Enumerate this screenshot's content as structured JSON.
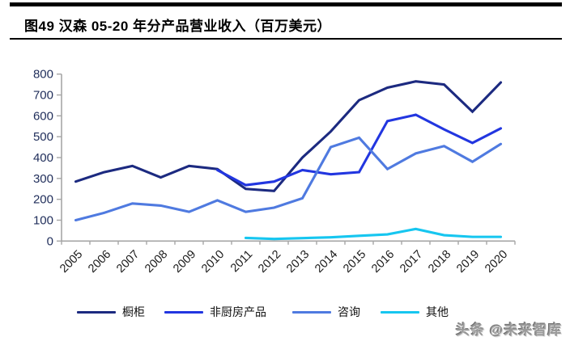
{
  "title": "图49 汉森 05-20 年分产品营业收入（百万美元）",
  "watermark": "头条 @未来智库",
  "chart_data": {
    "type": "line",
    "title": "图49 汉森 05-20 年分产品营业收入（百万美元）",
    "unit": "百万美元",
    "x": [
      "2005",
      "2006",
      "2007",
      "2008",
      "2009",
      "2010",
      "2011",
      "2012",
      "2013",
      "2014",
      "2015",
      "2016",
      "2017",
      "2018",
      "2019",
      "2020"
    ],
    "series": [
      {
        "name": "橱柜",
        "color": "#1c2a80",
        "values": [
          285,
          330,
          360,
          305,
          360,
          345,
          250,
          240,
          400,
          525,
          675,
          735,
          765,
          750,
          620,
          760
        ]
      },
      {
        "name": "非厨房产品",
        "color": "#2236e0",
        "values": [
          null,
          null,
          null,
          null,
          null,
          340,
          268,
          285,
          340,
          320,
          330,
          575,
          605,
          535,
          470,
          540
        ]
      },
      {
        "name": "咨询",
        "color": "#4f7ae0",
        "values": [
          100,
          135,
          180,
          170,
          140,
          195,
          140,
          160,
          205,
          450,
          495,
          345,
          420,
          455,
          380,
          465
        ]
      },
      {
        "name": "其他",
        "color": "#16c6f0",
        "values": [
          null,
          null,
          null,
          null,
          null,
          null,
          15,
          10,
          14,
          18,
          25,
          32,
          58,
          28,
          20,
          20
        ]
      }
    ],
    "ylim": [
      0,
      800
    ],
    "yticks": [
      0,
      100,
      200,
      300,
      400,
      500,
      600,
      700,
      800
    ],
    "grid": false,
    "legend_position": "bottom",
    "axis_color": "#a6a6a6",
    "ytick_label_color": "#1f2d5a",
    "xtick_label_color": "#1a1a1a"
  }
}
